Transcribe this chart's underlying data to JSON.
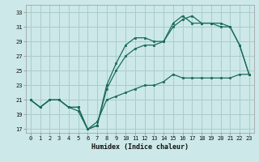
{
  "xlabel": "Humidex (Indice chaleur)",
  "bg_color": "#cce8e8",
  "grid_color": "#aacccc",
  "line_color": "#1a6b5a",
  "xlim": [
    -0.5,
    23.5
  ],
  "ylim": [
    16.5,
    34.0
  ],
  "xticks": [
    0,
    1,
    2,
    3,
    4,
    5,
    6,
    7,
    8,
    9,
    10,
    11,
    12,
    13,
    14,
    15,
    16,
    17,
    18,
    19,
    20,
    21,
    22,
    23
  ],
  "yticks": [
    17,
    19,
    21,
    23,
    25,
    27,
    29,
    31,
    33
  ],
  "line1_x": [
    0,
    1,
    2,
    3,
    4,
    5,
    6,
    7,
    8,
    9,
    10,
    11,
    12,
    13,
    14,
    15,
    16,
    17,
    18,
    19,
    20,
    21,
    22,
    23
  ],
  "line1_y": [
    21,
    20,
    21,
    21,
    20,
    20,
    17,
    17.5,
    23,
    26,
    28.5,
    29.5,
    29.5,
    29,
    29,
    31,
    32,
    32.5,
    31.5,
    31.5,
    31,
    31,
    28.5,
    24.5
  ],
  "line2_x": [
    0,
    1,
    2,
    3,
    4,
    5,
    6,
    7,
    8,
    9,
    10,
    11,
    12,
    13,
    14,
    15,
    16,
    17,
    18,
    19,
    20,
    21,
    22,
    23
  ],
  "line2_y": [
    21,
    20,
    21,
    21,
    20,
    20,
    17,
    17.5,
    22.5,
    25,
    27,
    28,
    28.5,
    28.5,
    29,
    31.5,
    32.5,
    31.5,
    31.5,
    31.5,
    31.5,
    31,
    28.5,
    24.5
  ],
  "line3_x": [
    0,
    1,
    2,
    3,
    4,
    5,
    6,
    7,
    8,
    9,
    10,
    11,
    12,
    13,
    14,
    15,
    16,
    17,
    18,
    19,
    20,
    21,
    22,
    23
  ],
  "line3_y": [
    21,
    20,
    21,
    21,
    20,
    19.5,
    17,
    18,
    21,
    21.5,
    22,
    22.5,
    23,
    23,
    23.5,
    24.5,
    24,
    24,
    24,
    24,
    24,
    24,
    24.5,
    24.5
  ]
}
